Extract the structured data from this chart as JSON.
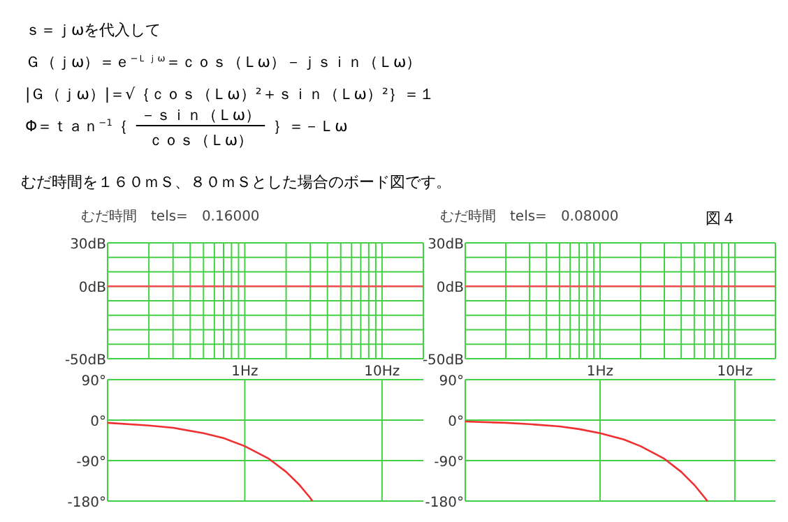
{
  "chart_data": [
    {
      "type": "line",
      "title": "むだ時間　tels=　0.16000",
      "annotations": [
        "ｓ＝ｊωを代入して",
        "Ｇ（ｊω）＝ｅ$^{−Ｌｊω}$＝ｃｏｓ（Ｌω）－ｊｓｉｎ（Ｌω）",
        "|Ｇ（ｊω）|＝√｛ｃｏｓ（Ｌω）²＋ｓｉｎ（Ｌω）²｝＝１",
        "Φ＝ｔａｎ$^{−1}$｛",
        "－ｓｉｎ（Ｌω）",
        "ｃｏｓ（Ｌω）",
        "｝＝－Ｌω",
        "むだ時間を１６０ｍＳ、８０ｍＳとした場合のボード図です。"
      ],
      "log": "x",
      "xlim": [
        0.1,
        20
      ],
      "xticks": [
        {
          "value": 0.2,
          "label": null
        },
        {
          "value": 0.3,
          "label": null
        },
        {
          "value": 0.4,
          "label": null
        },
        {
          "value": 0.5,
          "label": null
        },
        {
          "value": 0.6,
          "label": null
        },
        {
          "value": 0.7,
          "label": null
        },
        {
          "value": 0.8,
          "label": null
        },
        {
          "value": 0.9,
          "label": null
        },
        {
          "value": 1,
          "label": "1Hz"
        },
        {
          "value": 2,
          "label": null
        },
        {
          "value": 3,
          "label": null
        },
        {
          "value": 4,
          "label": null
        },
        {
          "value": 5,
          "label": null
        },
        {
          "value": 6,
          "label": null
        },
        {
          "value": 7,
          "label": null
        },
        {
          "value": 8,
          "label": null
        },
        {
          "value": 9,
          "label": null
        },
        {
          "value": 10,
          "label": "10Hz"
        },
        {
          "value": 20,
          "label": null
        }
      ],
      "ylim": [
        -50,
        30
      ],
      "yticks": [
        {
          "value": 30,
          "label": "30dB"
        },
        {
          "value": 20,
          "label": null
        },
        {
          "value": 10,
          "label": null
        },
        {
          "value": 0,
          "label": "0dB"
        },
        {
          "value": -10,
          "label": null
        },
        {
          "value": -20,
          "label": null
        },
        {
          "value": -30,
          "label": null
        },
        {
          "value": -40,
          "label": null
        },
        {
          "value": -50,
          "label": "-50dB"
        }
      ],
      "grid": true,
      "series": [
        {
          "color": "#f05050",
          "x": [
            0.1,
            20
          ],
          "values": [
            0,
            0
          ]
        }
      ]
    },
    {
      "type": "line",
      "log": "x",
      "xlim": [
        0.1,
        20
      ],
      "xticks": [
        {
          "value": 1,
          "label": null
        },
        {
          "value": 10,
          "label": null
        }
      ],
      "ylim": [
        -180,
        90
      ],
      "yticks": [
        {
          "value": 90,
          "label": "90°"
        },
        {
          "value": 0,
          "label": "0°"
        },
        {
          "value": -90,
          "label": "-90°"
        },
        {
          "value": -180,
          "label": "-180°"
        }
      ],
      "grid": true,
      "tick_labels": "y",
      "series": [
        {
          "color": "#f03030",
          "x": [
            0.1,
            0.2,
            0.3,
            0.5,
            0.7,
            1,
            1.5,
            2,
            2.5,
            3,
            3.1
          ],
          "values": [
            -6,
            -12,
            -17,
            -29,
            -40,
            -58,
            -86,
            -115,
            -144,
            -173,
            -180
          ]
        }
      ]
    },
    {
      "type": "line",
      "title": "むだ時間　tels=　0.08000",
      "annotations": [
        "図４"
      ],
      "log": "x",
      "xlim": [
        0.1,
        20
      ],
      "xticks": [
        {
          "value": 0.2,
          "label": null
        },
        {
          "value": 0.3,
          "label": null
        },
        {
          "value": 0.4,
          "label": null
        },
        {
          "value": 0.5,
          "label": null
        },
        {
          "value": 0.6,
          "label": null
        },
        {
          "value": 0.7,
          "label": null
        },
        {
          "value": 0.8,
          "label": null
        },
        {
          "value": 0.9,
          "label": null
        },
        {
          "value": 1,
          "label": "1Hz"
        },
        {
          "value": 2,
          "label": null
        },
        {
          "value": 3,
          "label": null
        },
        {
          "value": 4,
          "label": null
        },
        {
          "value": 5,
          "label": null
        },
        {
          "value": 6,
          "label": null
        },
        {
          "value": 7,
          "label": null
        },
        {
          "value": 8,
          "label": null
        },
        {
          "value": 9,
          "label": null
        },
        {
          "value": 10,
          "label": "10Hz"
        },
        {
          "value": 20,
          "label": null
        }
      ],
      "ylim": [
        -50,
        30
      ],
      "yticks": [
        {
          "value": 30,
          "label": "30dB"
        },
        {
          "value": 20,
          "label": null
        },
        {
          "value": 10,
          "label": null
        },
        {
          "value": 0,
          "label": "0dB"
        },
        {
          "value": -10,
          "label": null
        },
        {
          "value": -20,
          "label": null
        },
        {
          "value": -30,
          "label": null
        },
        {
          "value": -40,
          "label": null
        },
        {
          "value": -50,
          "label": "-50dB"
        }
      ],
      "grid": true,
      "series": [
        {
          "color": "#f05050",
          "x": [
            0.1,
            20
          ],
          "values": [
            0,
            0
          ]
        }
      ]
    },
    {
      "type": "line",
      "log": "x",
      "xlim": [
        0.1,
        20
      ],
      "xticks": [
        {
          "value": 1,
          "label": null
        },
        {
          "value": 10,
          "label": null
        }
      ],
      "ylim": [
        -180,
        90
      ],
      "yticks": [
        {
          "value": 90,
          "label": "90°"
        },
        {
          "value": 0,
          "label": "0°"
        },
        {
          "value": -90,
          "label": "-90°"
        },
        {
          "value": -180,
          "label": "-180°"
        }
      ],
      "grid": true,
      "tick_labels": "y",
      "series": [
        {
          "color": "#f03030",
          "x": [
            0.1,
            0.2,
            0.3,
            0.5,
            0.7,
            1,
            1.5,
            2,
            3,
            4,
            5,
            6,
            6.25
          ],
          "values": [
            -3,
            -6,
            -9,
            -14,
            -20,
            -29,
            -43,
            -58,
            -86,
            -115,
            -144,
            -173,
            -180
          ]
        }
      ]
    }
  ]
}
